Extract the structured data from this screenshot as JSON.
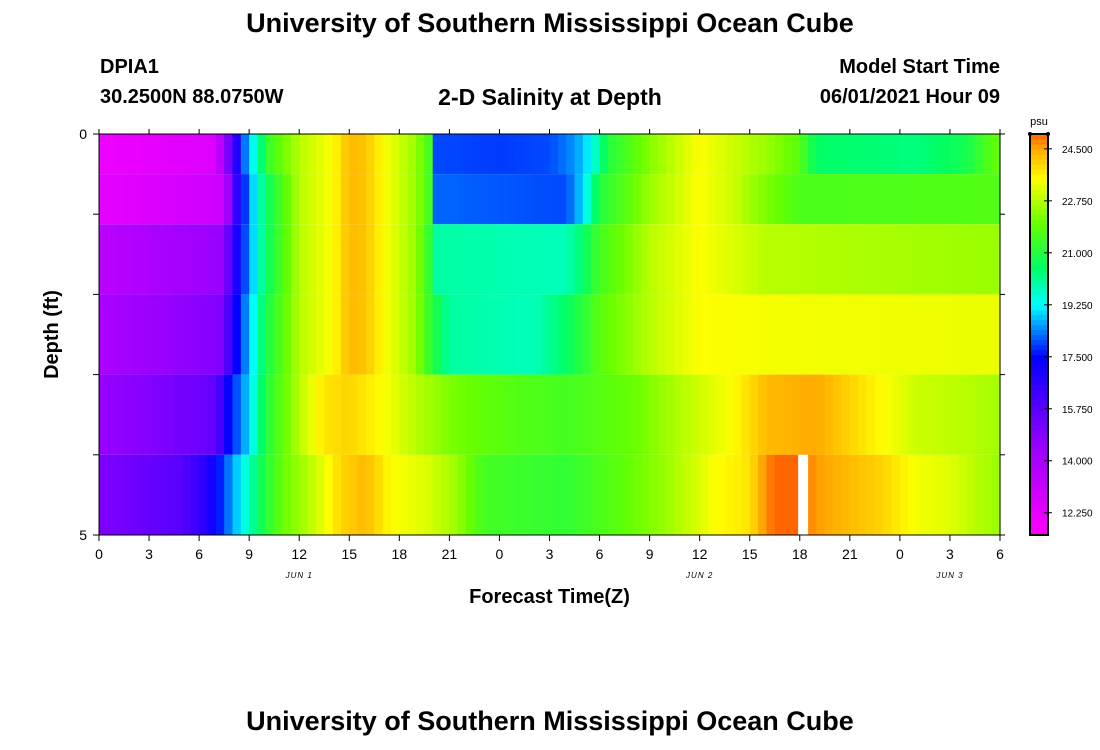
{
  "header": {
    "title": "University of Southern Mississippi Ocean Cube",
    "station": "DPIA1",
    "coordinates": "30.2500N  88.0750W",
    "subtitle": "2-D Salinity at Depth",
    "model_start_label": "Model Start Time",
    "model_start_value": "06/01/2021 Hour 09"
  },
  "footer": {
    "title": "University of Southern Mississippi Ocean Cube"
  },
  "chart_data": {
    "type": "heatmap",
    "title": "2-D Salinity at Depth",
    "xlabel": "Forecast Time(Z)",
    "ylabel": "Depth (ft)",
    "x_start_hour": 0,
    "x_end_hour": 54,
    "x_ticks": [
      {
        "hour": 0,
        "label": "0"
      },
      {
        "hour": 3,
        "label": "3"
      },
      {
        "hour": 6,
        "label": "6"
      },
      {
        "hour": 9,
        "label": "9"
      },
      {
        "hour": 12,
        "label": "12"
      },
      {
        "hour": 15,
        "label": "15"
      },
      {
        "hour": 18,
        "label": "18"
      },
      {
        "hour": 21,
        "label": "21"
      },
      {
        "hour": 24,
        "label": "0"
      },
      {
        "hour": 27,
        "label": "3"
      },
      {
        "hour": 30,
        "label": "6"
      },
      {
        "hour": 33,
        "label": "9"
      },
      {
        "hour": 36,
        "label": "12"
      },
      {
        "hour": 39,
        "label": "15"
      },
      {
        "hour": 42,
        "label": "18"
      },
      {
        "hour": 45,
        "label": "21"
      },
      {
        "hour": 48,
        "label": "0"
      },
      {
        "hour": 51,
        "label": "3"
      },
      {
        "hour": 54,
        "label": "6"
      }
    ],
    "date_labels": [
      {
        "hour": 12,
        "label": "JUN 1"
      },
      {
        "hour": 36,
        "label": "JUN 2"
      },
      {
        "hour": 51,
        "label": "JUN 3"
      }
    ],
    "y_ticks": [
      {
        "depth": 0,
        "label": "0"
      },
      {
        "depth": 5,
        "label": "5"
      }
    ],
    "ylim": [
      5,
      0
    ],
    "depth_levels": [
      0.25,
      0.75,
      1.5,
      2.5,
      3.5,
      4.5
    ],
    "colorbar": {
      "unit": "psu",
      "min": 11.5,
      "max": 25.0,
      "tick_values": [
        12.25,
        14.0,
        15.75,
        17.5,
        19.25,
        21.0,
        22.75,
        24.5
      ],
      "tick_labels": [
        "12.250",
        "14.000",
        "15.750",
        "17.500",
        "19.250",
        "21.000",
        "22.750",
        "24.500"
      ],
      "stops": [
        {
          "v": 11.5,
          "c": "#ff00ff"
        },
        {
          "v": 14.5,
          "c": "#9900ff"
        },
        {
          "v": 17.5,
          "c": "#0000ff"
        },
        {
          "v": 19.25,
          "c": "#00ffff"
        },
        {
          "v": 20.5,
          "c": "#00ff66"
        },
        {
          "v": 22.0,
          "c": "#66ff00"
        },
        {
          "v": 23.5,
          "c": "#ffff00"
        },
        {
          "v": 24.5,
          "c": "#ffaa00"
        },
        {
          "v": 25.0,
          "c": "#ff6600"
        }
      ]
    },
    "series": [
      {
        "depth": 0.25,
        "keyframes": [
          [
            0,
            12.0
          ],
          [
            7,
            12.5
          ],
          [
            8,
            16.0
          ],
          [
            8.6,
            18.0
          ],
          [
            9.3,
            19.5
          ],
          [
            10.3,
            21.5
          ],
          [
            12,
            22.8
          ],
          [
            14,
            23.5
          ],
          [
            15,
            24.3
          ],
          [
            16,
            24.2
          ],
          [
            17,
            23.5
          ],
          [
            19,
            22.5
          ],
          [
            19.8,
            21.5
          ],
          [
            20.1,
            18.0
          ],
          [
            24,
            17.9
          ],
          [
            27,
            18.0
          ],
          [
            28.5,
            18.5
          ],
          [
            29.5,
            19.3
          ],
          [
            30.5,
            21.0
          ],
          [
            33,
            22.3
          ],
          [
            36,
            23.5
          ],
          [
            40,
            22.5
          ],
          [
            42,
            21.8
          ],
          [
            43,
            20.5
          ],
          [
            49,
            20.3
          ],
          [
            52,
            20.8
          ],
          [
            53.5,
            21.8
          ],
          [
            54,
            22.0
          ]
        ]
      },
      {
        "depth": 0.75,
        "keyframes": [
          [
            0,
            12.2
          ],
          [
            7.5,
            13.0
          ],
          [
            8.2,
            16.5
          ],
          [
            9,
            18.5
          ],
          [
            10,
            20.5
          ],
          [
            12,
            22.8
          ],
          [
            14,
            23.5
          ],
          [
            15,
            24.3
          ],
          [
            16,
            24.2
          ],
          [
            17,
            23.5
          ],
          [
            19,
            22.5
          ],
          [
            19.8,
            21.5
          ],
          [
            20.1,
            18.2
          ],
          [
            28,
            18.0
          ],
          [
            29,
            19.0
          ],
          [
            30,
            21.0
          ],
          [
            33,
            22.5
          ],
          [
            36,
            23.5
          ],
          [
            38,
            23.0
          ],
          [
            40,
            22.2
          ],
          [
            42,
            21.6
          ],
          [
            54,
            21.7
          ]
        ]
      },
      {
        "depth": 1.5,
        "keyframes": [
          [
            0,
            13.5
          ],
          [
            7.5,
            14.5
          ],
          [
            8,
            16.5
          ],
          [
            9,
            18.5
          ],
          [
            10,
            20.5
          ],
          [
            12,
            22.8
          ],
          [
            14,
            23.5
          ],
          [
            15,
            24.3
          ],
          [
            16,
            24.2
          ],
          [
            17,
            23.5
          ],
          [
            19,
            22.5
          ],
          [
            19.8,
            21.2
          ],
          [
            20.1,
            20.0
          ],
          [
            28,
            19.8
          ],
          [
            29,
            20.5
          ],
          [
            30,
            21.5
          ],
          [
            33,
            22.8
          ],
          [
            36,
            23.5
          ],
          [
            40,
            22.8
          ],
          [
            54,
            22.5
          ]
        ]
      },
      {
        "depth": 2.5,
        "keyframes": [
          [
            0,
            14.0
          ],
          [
            7.5,
            15.0
          ],
          [
            8,
            17.0
          ],
          [
            9,
            18.8
          ],
          [
            10,
            20.8
          ],
          [
            12,
            22.8
          ],
          [
            14,
            23.5
          ],
          [
            15,
            24.3
          ],
          [
            16,
            24.2
          ],
          [
            17,
            23.5
          ],
          [
            19,
            22.5
          ],
          [
            20,
            21.0
          ],
          [
            21,
            20.0
          ],
          [
            26,
            19.8
          ],
          [
            28,
            20.5
          ],
          [
            30,
            21.8
          ],
          [
            33,
            22.8
          ],
          [
            36,
            23.5
          ],
          [
            40,
            23.4
          ],
          [
            54,
            23.3
          ]
        ]
      },
      {
        "depth": 3.5,
        "keyframes": [
          [
            0,
            14.5
          ],
          [
            7,
            15.5
          ],
          [
            7.8,
            17.5
          ],
          [
            9,
            19.0
          ],
          [
            10,
            21.0
          ],
          [
            12,
            22.8
          ],
          [
            13.5,
            23.8
          ],
          [
            15,
            24.0
          ],
          [
            17,
            23.5
          ],
          [
            19,
            22.8
          ],
          [
            21,
            22.2
          ],
          [
            24,
            21.8
          ],
          [
            28,
            21.5
          ],
          [
            32,
            22.0
          ],
          [
            35,
            22.8
          ],
          [
            38,
            23.5
          ],
          [
            40,
            24.3
          ],
          [
            43,
            24.5
          ],
          [
            45,
            24.0
          ],
          [
            47,
            23.5
          ],
          [
            49,
            23.0
          ],
          [
            52,
            22.8
          ],
          [
            54,
            22.6
          ]
        ]
      },
      {
        "depth": 4.5,
        "keyframes": [
          [
            0,
            15.0
          ],
          [
            5,
            15.8
          ],
          [
            6.5,
            16.8
          ],
          [
            7.5,
            18.0
          ],
          [
            8.5,
            19.2
          ],
          [
            9.5,
            20.5
          ],
          [
            11,
            22.0
          ],
          [
            13,
            23.0
          ],
          [
            14.5,
            24.0
          ],
          [
            16,
            24.3
          ],
          [
            17.5,
            23.5
          ],
          [
            19.5,
            23.2
          ],
          [
            21.5,
            22.5
          ],
          [
            23,
            21.5
          ],
          [
            28,
            21.2
          ],
          [
            31,
            21.8
          ],
          [
            34,
            22.5
          ],
          [
            37,
            23.5
          ],
          [
            39,
            23.8
          ],
          [
            39.7,
            24.5
          ],
          [
            40.5,
            25.0
          ],
          [
            42,
            25.0
          ],
          [
            43,
            24.6
          ],
          [
            45,
            24.3
          ],
          [
            47,
            24.0
          ],
          [
            49,
            23.4
          ],
          [
            51,
            23.2
          ],
          [
            52.5,
            22.8
          ],
          [
            54,
            22.5
          ]
        ]
      }
    ],
    "missing": [
      {
        "hour_start": 41.9,
        "hour_end": 42.5,
        "depth_start": 4,
        "depth_end": 5
      }
    ]
  }
}
